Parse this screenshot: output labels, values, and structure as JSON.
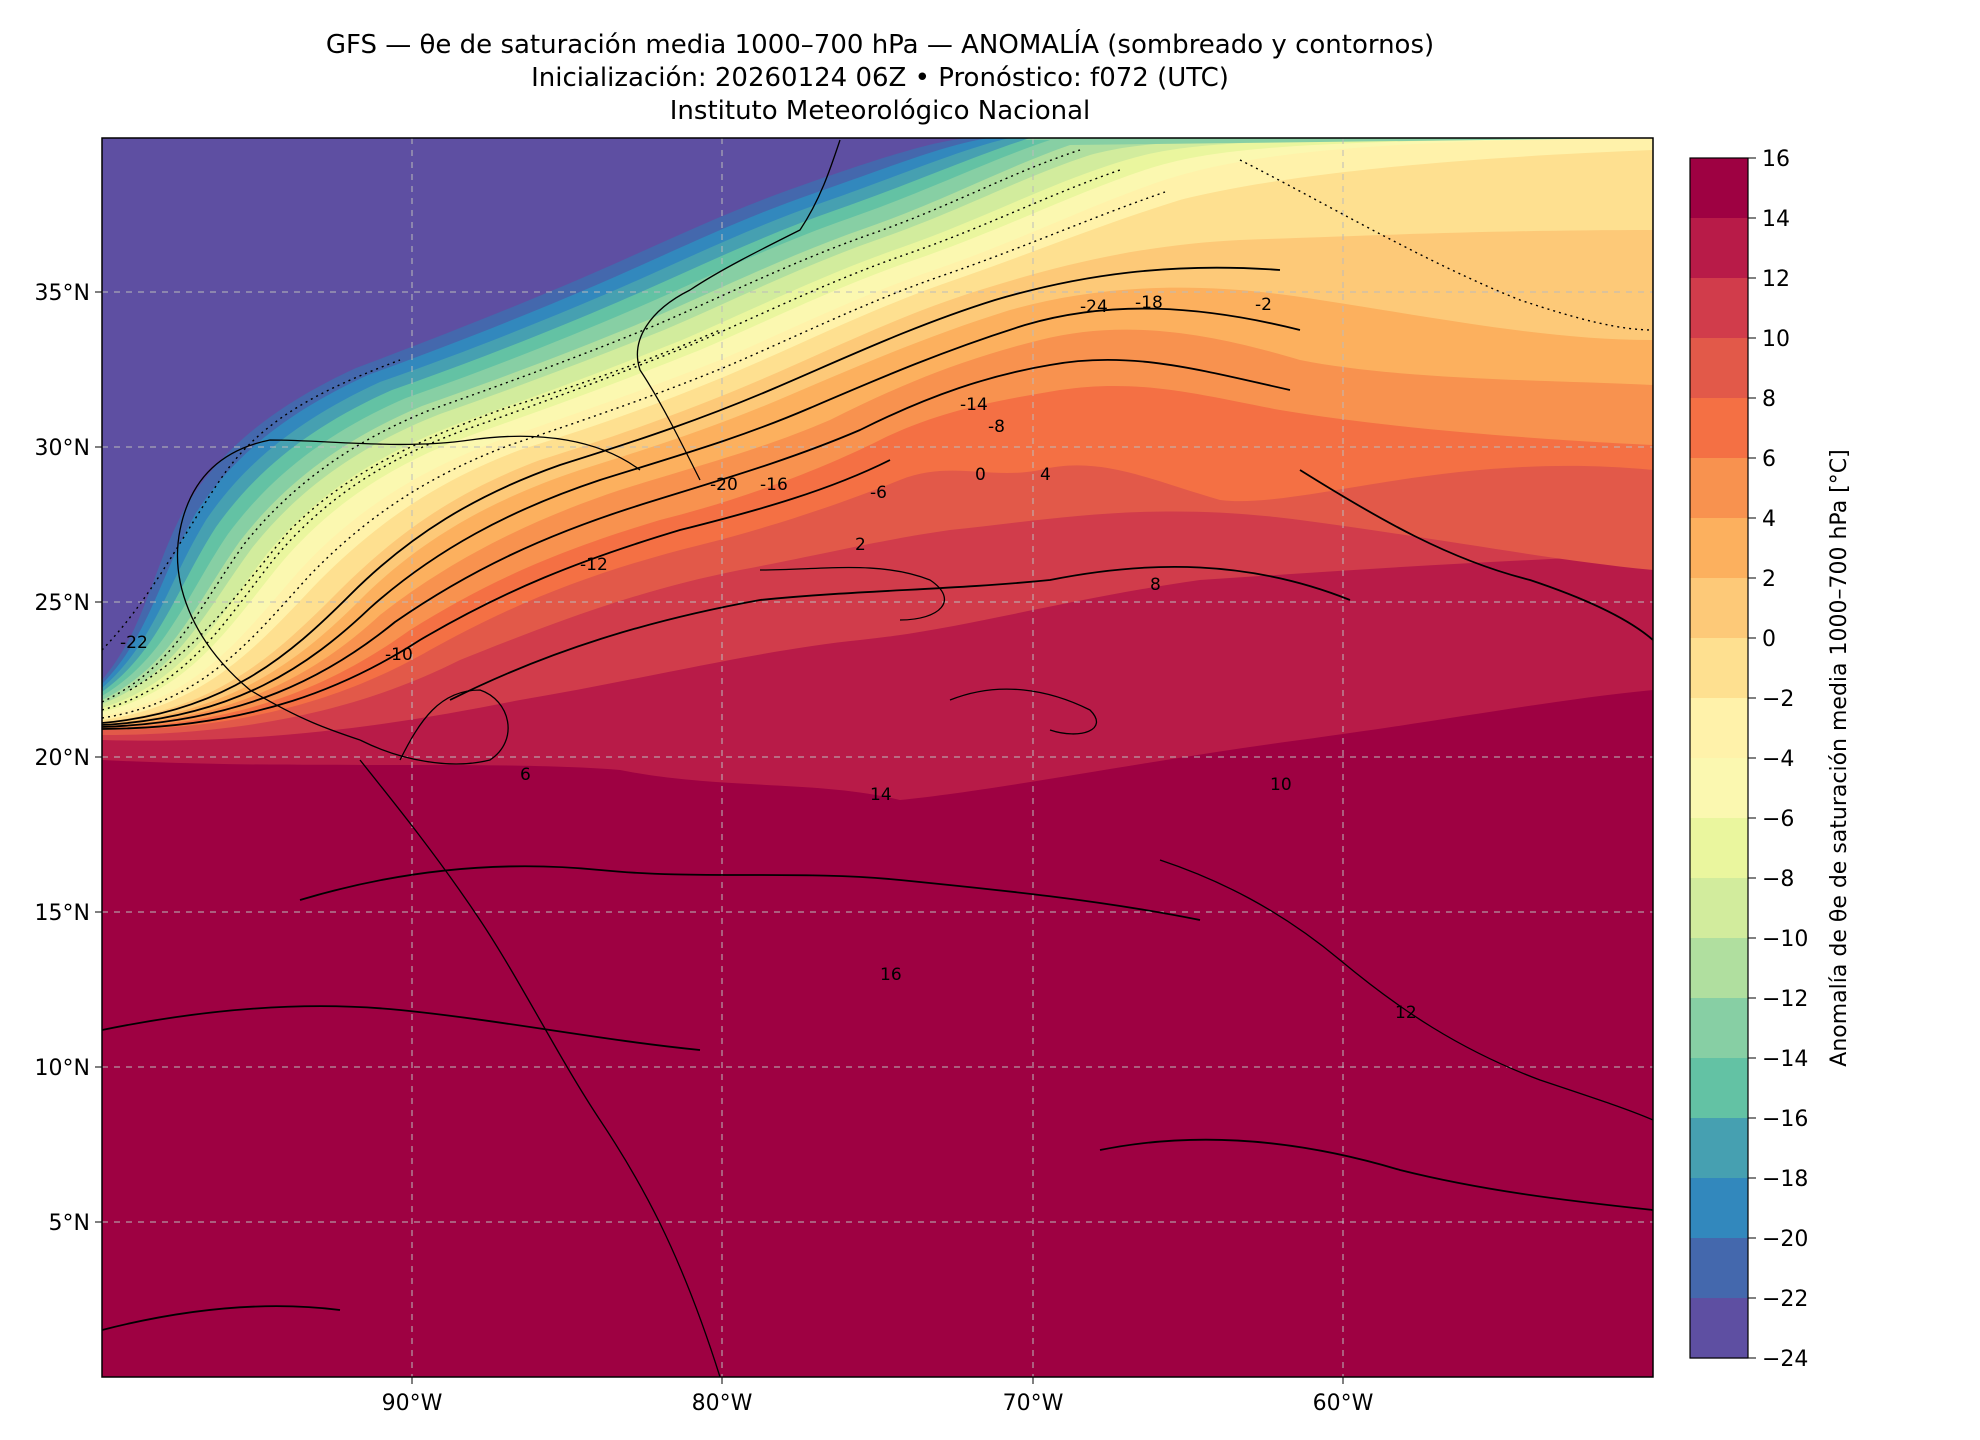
{
  "header": {
    "title": "GFS — θe de saturación media 1000–700 hPa — ANOMALÍA (sombreado y contornos)",
    "subtitle": "Inicialización: 20260124 06Z   •   Pronóstico: f072 (UTC)",
    "institution": "Instituto Meteorológico Nacional"
  },
  "map": {
    "lon_range": [
      -100,
      -50
    ],
    "lat_range": [
      0,
      40
    ],
    "lon_ticks": [
      "90°W",
      "80°W",
      "70°W",
      "60°W"
    ],
    "lat_ticks": [
      "35°N",
      "30°N",
      "25°N",
      "20°N",
      "15°N",
      "10°N",
      "5°N"
    ],
    "gridlines": "dashed",
    "contour_labels": [
      "-24",
      "-22",
      "-20",
      "-18",
      "-16",
      "-14",
      "-12",
      "-10",
      "-8",
      "-6",
      "-2",
      "0",
      "2",
      "4",
      "6",
      "8",
      "10",
      "12",
      "14",
      "16"
    ]
  },
  "colorbar": {
    "label": "Anomalía de θe de saturación media 1000–700 hPa [°C]",
    "ticks": [
      "16",
      "14",
      "12",
      "10",
      "8",
      "6",
      "4",
      "2",
      "0",
      "−2",
      "−4",
      "−6",
      "−8",
      "−10",
      "−12",
      "−14",
      "−16",
      "−18",
      "−20",
      "−22",
      "−24"
    ],
    "colors": [
      "#9e0142",
      "#b81b48",
      "#d13c4b",
      "#e25949",
      "#f47044",
      "#f8924f",
      "#fcb05e",
      "#fdc978",
      "#fee090",
      "#fff2aa",
      "#fbf8b0",
      "#eaf69e",
      "#d2ec9d",
      "#b0df9f",
      "#87cfa4",
      "#63c2a4",
      "#46a0b1",
      "#3288bd",
      "#4468ad",
      "#5e4fa2"
    ]
  }
}
